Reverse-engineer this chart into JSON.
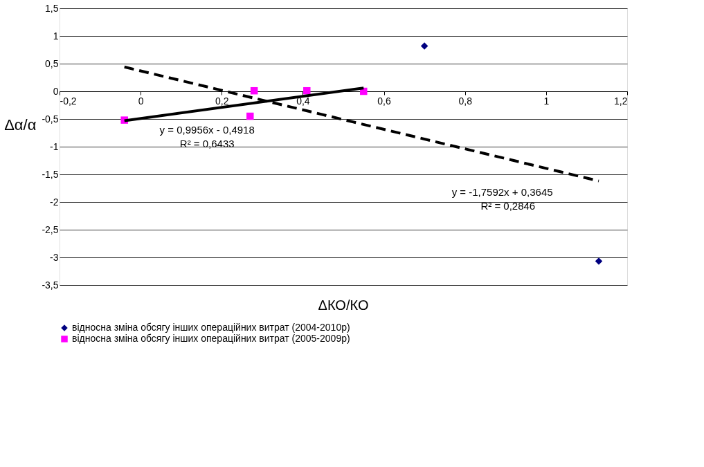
{
  "chart_data": {
    "type": "scatter",
    "xlabel": "ΔКО/КО",
    "ylabel": "Δα/α",
    "xlim": [
      -0.2,
      1.2
    ],
    "ylim": [
      -3.5,
      1.5
    ],
    "xticks": [
      {
        "value": -0.2,
        "label": "-0,2"
      },
      0,
      {
        "value": 0.2,
        "label": "0,2"
      },
      {
        "value": 0.4,
        "label": "0,4"
      },
      {
        "value": 0.6,
        "label": "0,6"
      },
      {
        "value": 0.8,
        "label": "0,8"
      },
      1,
      {
        "value": 1.2,
        "label": "1,2"
      }
    ],
    "yticks": [
      {
        "value": -3.5,
        "label": "-3,5"
      },
      -3,
      {
        "value": -2.5,
        "label": "-2,5"
      },
      -2,
      {
        "value": -1.5,
        "label": "-1,5"
      },
      -1,
      {
        "value": -0.5,
        "label": "-0,5"
      },
      0,
      {
        "value": 0.5,
        "label": "0,5"
      },
      1,
      {
        "value": 1.5,
        "label": "1,5"
      }
    ],
    "grid": "y",
    "legend": "bottom",
    "series": [
      {
        "name": "відносна зміна обсягу інших операційних витрат (2004-2010р)",
        "color": "#000080",
        "type": "scatter",
        "marker": "diamond",
        "x": [
          0.7,
          1.13
        ],
        "values": [
          0.82,
          -3.07
        ]
      },
      {
        "name": "відносна зміна обсягу інших операційних витрат (2005-2009р)",
        "color": "#ff00ff",
        "type": "scatter",
        "marker": "square",
        "x": [
          -0.04,
          0.27,
          0.28,
          0.41,
          0.55
        ],
        "values": [
          -0.52,
          -0.45,
          0.01,
          0.01,
          0.0
        ]
      },
      {
        "color": "#000000",
        "type": "line",
        "line_style": "dashed",
        "x": [
          -0.04,
          1.13
        ],
        "values": [
          0.44,
          -1.62
        ]
      },
      {
        "color": "#000000",
        "type": "line",
        "line_style": "solid",
        "x": [
          -0.04,
          0.55
        ],
        "values": [
          -0.53,
          0.06
        ]
      }
    ],
    "annotations": [
      "y = 0,9956x - 0,4918",
      "R² = 0,6433",
      "y = -1,7592x + 0,3645",
      "R² = 0,2846"
    ]
  }
}
